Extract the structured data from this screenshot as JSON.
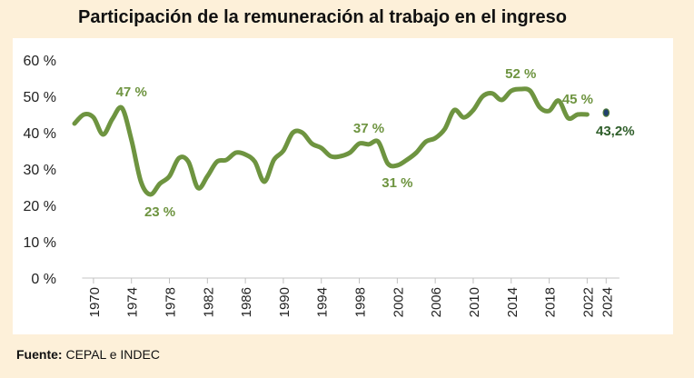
{
  "page": {
    "title": "Participación de la remuneración al trabajo en el ingreso",
    "source_label": "Fuente:",
    "source_text": "CEPAL e INDEC"
  },
  "chart_data": {
    "type": "line",
    "title": "Participación de la remuneración al trabajo en el ingreso",
    "xlabel": "",
    "ylabel": "",
    "ylim": [
      0,
      60
    ],
    "y_ticks": [
      "0 %",
      "10 %",
      "20 %",
      "30 %",
      "40 %",
      "50 %",
      "60 %"
    ],
    "x_ticks": [
      "1970",
      "1974",
      "1978",
      "1982",
      "1986",
      "1990",
      "1994",
      "1998",
      "2002",
      "2006",
      "2010",
      "2014",
      "2018",
      "2022",
      "2024"
    ],
    "grid": false,
    "line_color": "#6e9440",
    "marker_color": "#1f3f6e",
    "series": [
      {
        "x": [
          1968,
          1969,
          1970,
          1971,
          1972,
          1973,
          1974,
          1975,
          1976,
          1977,
          1978,
          1979,
          1980,
          1981,
          1982,
          1983,
          1984,
          1985,
          1986,
          1987,
          1988,
          1989,
          1990,
          1991,
          1992,
          1993,
          1994,
          1995,
          1996,
          1997,
          1998,
          1999,
          2000,
          2001,
          2002,
          2003,
          2004,
          2005,
          2006,
          2007,
          2008,
          2009,
          2010,
          2011,
          2012,
          2013,
          2014,
          2015,
          2016,
          2017,
          2018,
          2019,
          2020,
          2021,
          2022
        ],
        "y": [
          42.5,
          45.0,
          44.2,
          39.5,
          43.8,
          46.8,
          38.0,
          26.5,
          23.0,
          26.0,
          28.0,
          33.0,
          32.0,
          24.8,
          28.0,
          32.0,
          32.5,
          34.5,
          34.0,
          32.0,
          26.5,
          32.5,
          35.0,
          40.0,
          40.0,
          37.0,
          35.8,
          33.5,
          33.5,
          34.5,
          37.0,
          36.8,
          37.5,
          31.5,
          31.0,
          32.5,
          34.5,
          37.5,
          38.5,
          41.0,
          46.2,
          44.2,
          46.2,
          50.0,
          50.8,
          49.0,
          51.5,
          52.0,
          51.5,
          47.0,
          46.0,
          48.8,
          44.0,
          45.0,
          45.0
        ]
      }
    ],
    "data_labels": [
      {
        "x": 1974,
        "y": 47,
        "text": "47 %",
        "pos": "above"
      },
      {
        "x": 1977,
        "y": 23,
        "text": "23 %",
        "pos": "below"
      },
      {
        "x": 1999,
        "y": 37,
        "text": "37 %",
        "pos": "above"
      },
      {
        "x": 2002,
        "y": 31,
        "text": "31 %",
        "pos": "below"
      },
      {
        "x": 2015,
        "y": 52,
        "text": "52 %",
        "pos": "above"
      },
      {
        "x": 2021,
        "y": 45,
        "text": "45 %",
        "pos": "above"
      }
    ],
    "point": {
      "x": 2024,
      "y": 45.5,
      "text": "43,2%"
    }
  }
}
